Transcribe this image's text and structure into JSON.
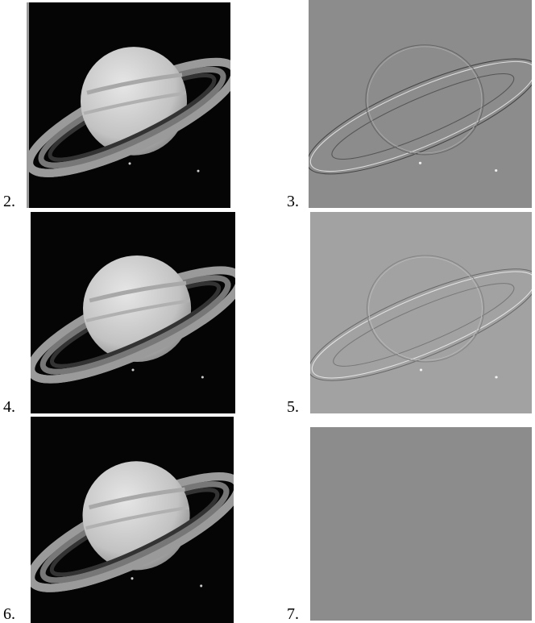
{
  "panels": [
    {
      "label": "2."
    },
    {
      "label": "3."
    },
    {
      "label": "4."
    },
    {
      "label": "5."
    },
    {
      "label": "6."
    },
    {
      "label": "7."
    }
  ]
}
